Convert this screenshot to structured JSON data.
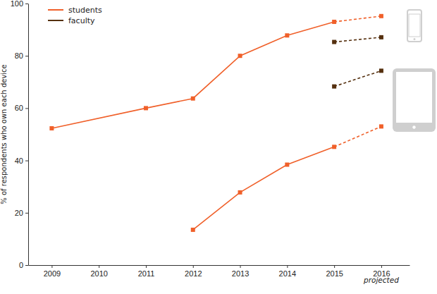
{
  "chart_data": {
    "type": "line",
    "ylabel": "% of respondents who own each device",
    "xlim": [
      2008.5,
      2016.6
    ],
    "xticks": [
      2009,
      2010,
      2011,
      2012,
      2013,
      2014,
      2015,
      2016
    ],
    "ylim": [
      0,
      100
    ],
    "yticks": [
      0,
      20,
      40,
      60,
      80,
      100
    ],
    "legend": "upper left",
    "marker": "square",
    "line_style": "solid",
    "annotations": [
      {
        "text": "projected",
        "x": 2016
      }
    ],
    "series": [
      {
        "name": "students",
        "color": "#f0602a",
        "x": [
          2009,
          2011,
          2012,
          2013,
          2014,
          2015,
          2016
        ],
        "values": [
          52.3,
          60,
          63.7,
          80,
          87.8,
          93,
          95.2
        ]
      },
      {
        "name": "faculty",
        "color": "#55300f",
        "x": [
          2015,
          2016
        ],
        "values": [
          85.3,
          87.1
        ]
      },
      {
        "name": "faculty",
        "color": "#55300f",
        "x": [
          2015,
          2016
        ],
        "values": [
          68.3,
          74.3
        ]
      },
      {
        "name": "students",
        "color": "#f0602a",
        "x": [
          2012,
          2013,
          2014,
          2015,
          2016
        ],
        "values": [
          13.5,
          27.8,
          38.4,
          45.2,
          53
        ]
      }
    ]
  }
}
